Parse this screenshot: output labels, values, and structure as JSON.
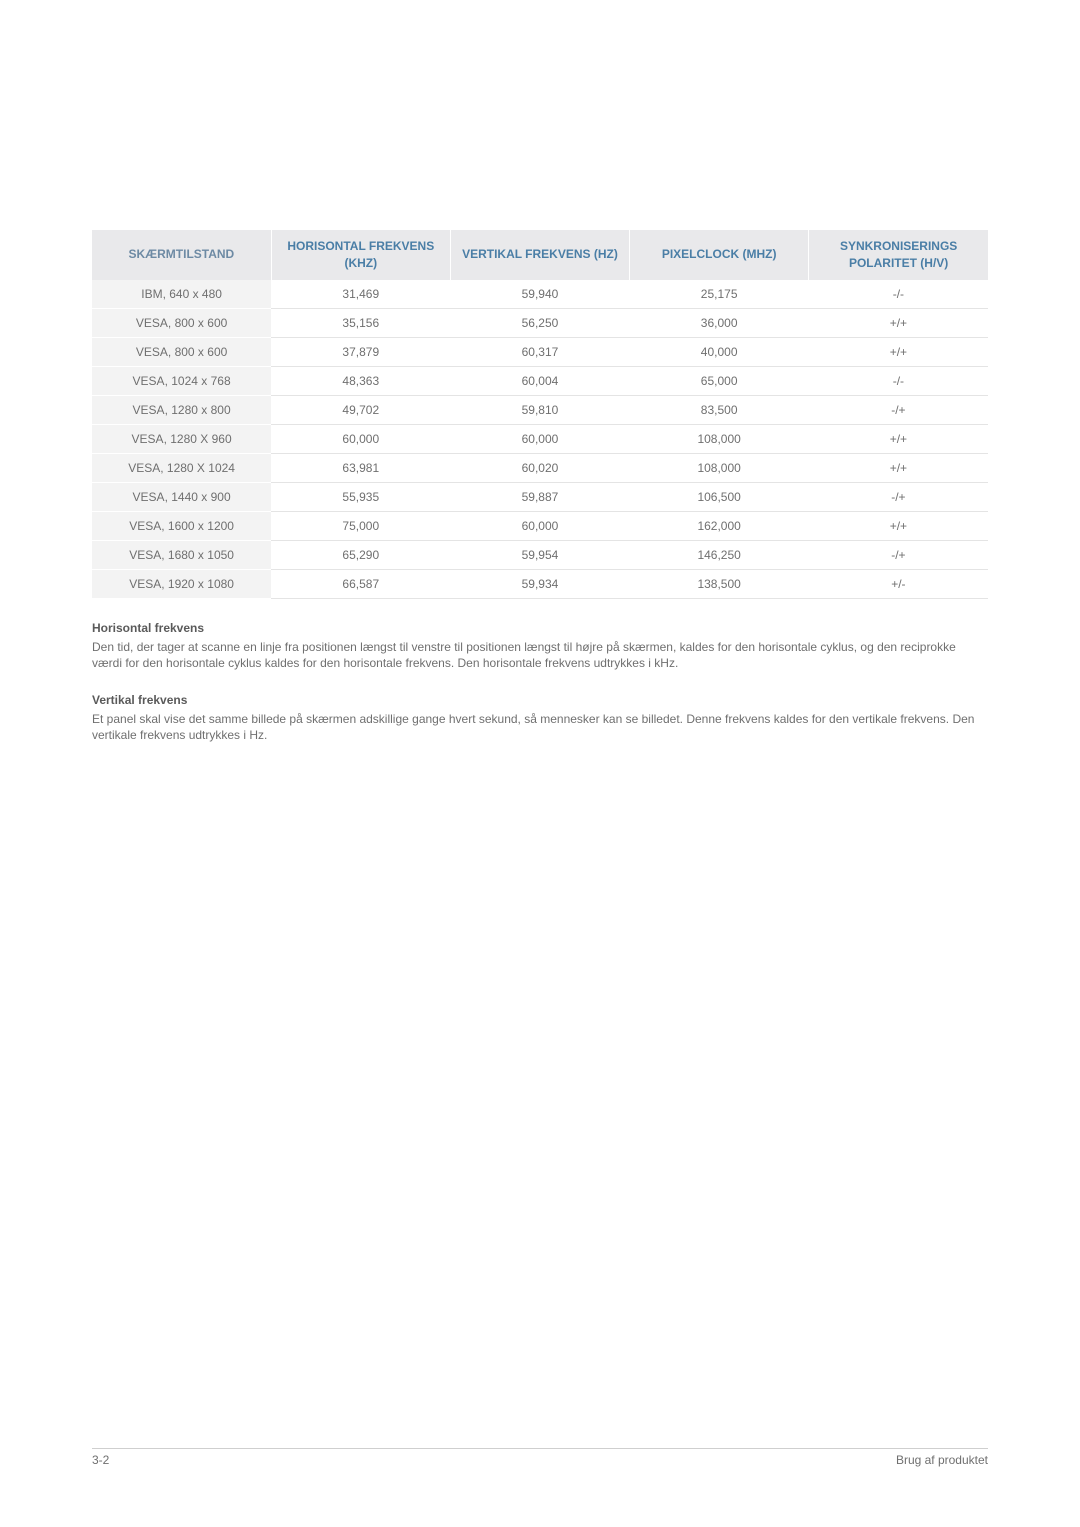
{
  "table": {
    "columns": [
      {
        "label": "SKÆRMTILSTAND",
        "cls": "col-mode"
      },
      {
        "label": "HORISONTAL FREKVENS (KHZ)"
      },
      {
        "label": "VERTIKAL FREKVENS (HZ)"
      },
      {
        "label": "PIXELCLOCK (MHZ)"
      },
      {
        "label": "SYNKRONISERINGS POLARITET (H/V)"
      }
    ],
    "rows": [
      [
        "IBM, 640 x 480",
        "31,469",
        "59,940",
        "25,175",
        "-/-"
      ],
      [
        "VESA, 800 x 600",
        "35,156",
        "56,250",
        "36,000",
        "+/+"
      ],
      [
        "VESA, 800 x 600",
        "37,879",
        "60,317",
        "40,000",
        "+/+"
      ],
      [
        "VESA, 1024 x 768",
        "48,363",
        "60,004",
        "65,000",
        "-/-"
      ],
      [
        "VESA, 1280 x 800",
        "49,702",
        "59,810",
        "83,500",
        "-/+"
      ],
      [
        "VESA, 1280 X 960",
        "60,000",
        "60,000",
        "108,000",
        "+/+"
      ],
      [
        "VESA, 1280 X 1024",
        "63,981",
        "60,020",
        "108,000",
        "+/+"
      ],
      [
        "VESA, 1440 x 900",
        "55,935",
        "59,887",
        "106,500",
        "-/+"
      ],
      [
        "VESA, 1600 x 1200",
        "75,000",
        "60,000",
        "162,000",
        "+/+"
      ],
      [
        "VESA, 1680 x 1050",
        "65,290",
        "59,954",
        "146,250",
        "-/+"
      ],
      [
        "VESA, 1920 x 1080",
        "66,587",
        "59,934",
        "138,500",
        "+/-"
      ]
    ]
  },
  "sections": {
    "hfreq_title": "Horisontal frekvens",
    "hfreq_body": "Den tid, der tager at scanne en linje fra positionen længst til venstre til positionen længst til højre på skærmen, kaldes for den horisontale cyklus, og den reciprokke værdi for den horisontale cyklus kaldes for den horisontale frekvens. Den horisontale frekvens udtrykkes i kHz.",
    "vfreq_title": "Vertikal frekvens",
    "vfreq_body": "Et panel skal vise det samme billede på skærmen adskillige gange hvert sekund, så mennesker kan se billedet. Denne frekvens kaldes for den vertikale frekvens. Den vertikale frekvens udtrykkes i Hz."
  },
  "footer": {
    "left": "3-2",
    "right": "Brug af produktet"
  }
}
